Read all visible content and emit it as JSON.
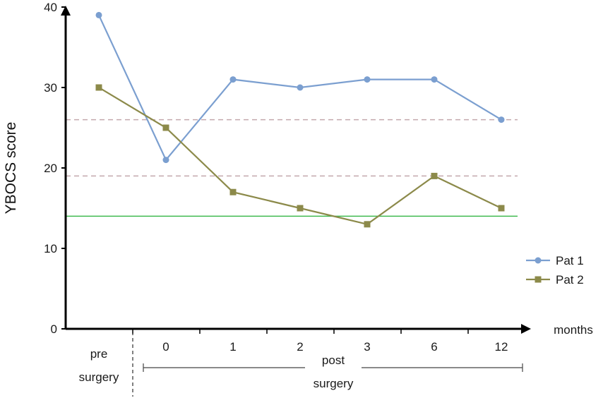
{
  "chart_data": {
    "type": "line",
    "ylabel": "YBOCS score",
    "xlabel": "months",
    "ylim": [
      0,
      40
    ],
    "yticks": [
      0,
      10,
      20,
      30,
      40
    ],
    "categories": [
      "pre surgery",
      "0",
      "1",
      "2",
      "3",
      "6",
      "12"
    ],
    "x_groups": {
      "pre": [
        "pre",
        "surgery"
      ],
      "post": [
        "post",
        "surgery"
      ]
    },
    "series": [
      {
        "name": "Pat 1",
        "color": "#7b9fd0",
        "marker": "circle",
        "values": [
          39,
          21,
          31,
          30,
          31,
          31,
          26
        ]
      },
      {
        "name": "Pat 2",
        "color": "#8c8a4a",
        "marker": "square",
        "values": [
          30,
          25,
          17,
          15,
          13,
          19,
          15
        ]
      }
    ],
    "reference_lines": [
      {
        "y": 26,
        "style": "dashed",
        "color": "#c4a8ad"
      },
      {
        "y": 19,
        "style": "dashed",
        "color": "#c4a8ad"
      },
      {
        "y": 14,
        "style": "solid",
        "color": "#3fba4f"
      }
    ],
    "legend_position": "right",
    "grid": false
  }
}
